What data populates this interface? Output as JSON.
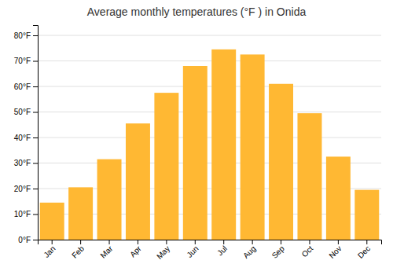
{
  "chart_data": {
    "type": "bar",
    "title": "Average monthly temperatures (°F ) in Onida",
    "categories": [
      "Jan",
      "Feb",
      "Mar",
      "Apr",
      "May",
      "Jun",
      "Jul",
      "Aug",
      "Sep",
      "Oct",
      "Nov",
      "Dec"
    ],
    "values": [
      14.5,
      20.5,
      31.5,
      45.5,
      57.5,
      68.0,
      74.5,
      72.5,
      61.0,
      49.5,
      32.5,
      19.5
    ],
    "color": "#FFB833",
    "ylim": [
      0,
      84
    ],
    "yticks": [
      {
        "value": 0,
        "label": "0°F"
      },
      {
        "value": 10,
        "label": "10°F"
      },
      {
        "value": 20,
        "label": "20°F"
      },
      {
        "value": 30,
        "label": "30°F"
      },
      {
        "value": 40,
        "label": "40°F"
      },
      {
        "value": 50,
        "label": "50°F"
      },
      {
        "value": 60,
        "label": "60°F"
      },
      {
        "value": 70,
        "label": "70°F"
      },
      {
        "value": 80,
        "label": "80°F"
      }
    ],
    "grid": true
  }
}
